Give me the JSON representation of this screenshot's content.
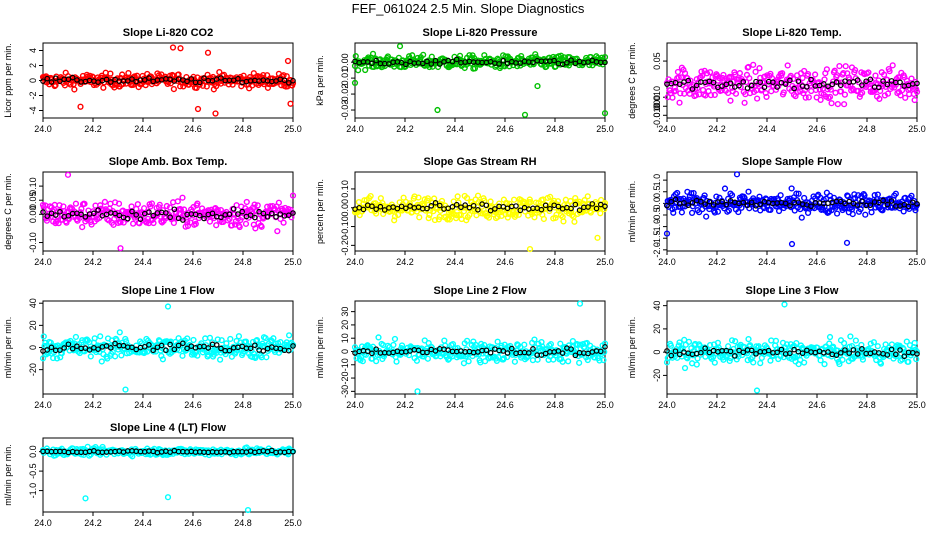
{
  "page_title": "FEF_061024  2.5 Min. Slope Diagnostics",
  "chart_data": [
    {
      "type": "scatter",
      "title": "Slope Li-820 CO2",
      "ylabel": "Licor ppm per min.",
      "color": "#ff0000",
      "xlim": [
        24.0,
        25.0
      ],
      "ylim": [
        -5,
        5
      ],
      "xticks": [
        "24.0",
        "24.2",
        "24.4",
        "24.6",
        "24.8",
        "25.0"
      ],
      "yticks": [
        {
          "v": -4,
          "t": "-4"
        },
        {
          "v": -2,
          "t": "-2"
        },
        {
          "v": 0,
          "t": "0"
        },
        {
          "v": 2,
          "t": "2"
        },
        {
          "v": 4,
          "t": "4"
        }
      ],
      "spread": 0.9,
      "outliers": [
        [
          24.52,
          4.4
        ],
        [
          24.55,
          4.3
        ],
        [
          24.66,
          3.7
        ],
        [
          24.69,
          -4.4
        ],
        [
          24.62,
          -3.8
        ],
        [
          24.99,
          -3.1
        ],
        [
          24.98,
          2.6
        ],
        [
          24.15,
          -3.5
        ]
      ]
    },
    {
      "type": "scatter",
      "title": "Slope Li-820 Pressure",
      "ylabel": "kPa per min.",
      "color": "#00c000",
      "xlim": [
        24.0,
        25.0
      ],
      "ylim": [
        -0.035,
        0.012
      ],
      "xticks": [
        "24.0",
        "24.2",
        "24.4",
        "24.6",
        "24.8",
        "25.0"
      ],
      "yticks": [
        {
          "v": -0.03,
          "t": "-0.03"
        },
        {
          "v": -0.02,
          "t": "-0.02"
        },
        {
          "v": -0.01,
          "t": "-0.01"
        },
        {
          "v": 0.0,
          "t": "0.00"
        }
      ],
      "spread": 0.004,
      "outliers": [
        [
          24.33,
          -0.03
        ],
        [
          24.68,
          -0.033
        ],
        [
          25.0,
          -0.032
        ],
        [
          24.0,
          -0.013
        ],
        [
          24.18,
          0.01
        ],
        [
          24.73,
          -0.015
        ]
      ]
    },
    {
      "type": "scatter",
      "title": "Slope Li-820 Temp.",
      "ylabel": "degrees C per min.",
      "color": "#ff00ff",
      "xlim": [
        24.0,
        25.0
      ],
      "ylim": [
        -0.013,
        0.07
      ],
      "xticks": [
        "24.0",
        "24.2",
        "24.4",
        "24.6",
        "24.8",
        "25.0"
      ],
      "yticks": [
        {
          "v": -0.01,
          "t": "-0.010"
        },
        {
          "v": 0.0,
          "t": "0.000"
        },
        {
          "v": 0.01,
          "t": "0.010"
        },
        {
          "v": 0.05,
          "t": "0.05"
        }
      ],
      "spread": 0.018,
      "center": 0.025,
      "outliers": []
    },
    {
      "type": "scatter",
      "title": "Slope Amb. Box Temp.",
      "ylabel": "degrees C per min.",
      "color": "#ff00ff",
      "xlim": [
        24.0,
        25.0
      ],
      "ylim": [
        -0.13,
        0.15
      ],
      "xticks": [
        "24.0",
        "24.2",
        "24.4",
        "24.6",
        "24.8",
        "25.0"
      ],
      "yticks": [
        {
          "v": -0.1,
          "t": "-0.10"
        },
        {
          "v": 0.0,
          "t": "0.00"
        },
        {
          "v": 0.05,
          "t": "0.05"
        },
        {
          "v": 0.1,
          "t": "0.10"
        }
      ],
      "spread": 0.045,
      "outliers": [
        [
          24.1,
          0.14
        ],
        [
          24.31,
          -0.12
        ]
      ]
    },
    {
      "type": "scatter",
      "title": "Slope Gas Stream RH",
      "ylabel": "percent per min.",
      "color": "#ffff00",
      "xlim": [
        24.0,
        25.0
      ],
      "ylim": [
        -0.23,
        0.19
      ],
      "xticks": [
        "24.0",
        "24.2",
        "24.4",
        "24.6",
        "24.8",
        "25.0"
      ],
      "yticks": [
        {
          "v": -0.2,
          "t": "-0.20"
        },
        {
          "v": -0.1,
          "t": "-0.10"
        },
        {
          "v": 0.0,
          "t": "0.00"
        },
        {
          "v": 0.1,
          "t": "0.10"
        }
      ],
      "spread": 0.06,
      "outliers": [
        [
          24.7,
          -0.22
        ],
        [
          24.97,
          -0.16
        ]
      ]
    },
    {
      "type": "scatter",
      "title": "Slope Sample Flow",
      "ylabel": "ml/min per min.",
      "color": "#0000ff",
      "xlim": [
        24.0,
        25.0
      ],
      "ylim": [
        -2.05,
        1.35
      ],
      "xticks": [
        "24.0",
        "24.2",
        "24.4",
        "24.6",
        "24.8",
        "25.0"
      ],
      "yticks": [
        {
          "v": -2.0,
          "t": "-2.0"
        },
        {
          "v": -1.5,
          "t": "-1.5"
        },
        {
          "v": -1.0,
          "t": "-1.0"
        },
        {
          "v": -0.5,
          "t": "-0.5"
        },
        {
          "v": 0.0,
          "t": "0.0"
        },
        {
          "v": 0.5,
          "t": "0.5"
        },
        {
          "v": 1.0,
          "t": "1.0"
        }
      ],
      "spread": 0.45,
      "outliers": [
        [
          24.28,
          1.25
        ],
        [
          24.5,
          -1.75
        ],
        [
          24.72,
          -1.7
        ],
        [
          24.0,
          -1.3
        ]
      ]
    },
    {
      "type": "scatter",
      "title": "Slope Line 1 Flow",
      "ylabel": "ml/min per min.",
      "color": "#00ffff",
      "xlim": [
        24.0,
        25.0
      ],
      "ylim": [
        -42,
        42
      ],
      "xticks": [
        "24.0",
        "24.2",
        "24.4",
        "24.6",
        "24.8",
        "25.0"
      ],
      "yticks": [
        {
          "v": -20,
          "t": "-20"
        },
        {
          "v": 0,
          "t": "0"
        },
        {
          "v": 20,
          "t": "20"
        },
        {
          "v": 40,
          "t": "40"
        }
      ],
      "spread": 10,
      "outliers": [
        [
          24.33,
          -38
        ],
        [
          24.5,
          37
        ]
      ]
    },
    {
      "type": "scatter",
      "title": "Slope Line 2 Flow",
      "ylabel": "ml/min per min.",
      "color": "#00ffff",
      "xlim": [
        24.0,
        25.0
      ],
      "ylim": [
        -32,
        38
      ],
      "xticks": [
        "24.0",
        "24.2",
        "24.4",
        "24.6",
        "24.8",
        "25.0"
      ],
      "yticks": [
        {
          "v": -30,
          "t": "-30"
        },
        {
          "v": -20,
          "t": "-20"
        },
        {
          "v": -10,
          "t": "-10"
        },
        {
          "v": 0,
          "t": "0"
        },
        {
          "v": 10,
          "t": "10"
        },
        {
          "v": 20,
          "t": "20"
        },
        {
          "v": 30,
          "t": "30"
        }
      ],
      "spread": 8,
      "outliers": [
        [
          24.9,
          36
        ],
        [
          24.25,
          -30
        ]
      ]
    },
    {
      "type": "scatter",
      "title": "Slope Line 3 Flow",
      "ylabel": "ml/min per min.",
      "color": "#00ffff",
      "xlim": [
        24.0,
        25.0
      ],
      "ylim": [
        -36,
        44
      ],
      "xticks": [
        "24.0",
        "24.2",
        "24.4",
        "24.6",
        "24.8",
        "25.0"
      ],
      "yticks": [
        {
          "v": -20,
          "t": "-20"
        },
        {
          "v": 0,
          "t": "0"
        },
        {
          "v": 20,
          "t": "20"
        },
        {
          "v": 40,
          "t": "40"
        }
      ],
      "spread": 9,
      "outliers": [
        [
          24.47,
          41
        ],
        [
          24.36,
          -33
        ]
      ]
    },
    {
      "type": "scatter",
      "title": "Slope Line 4 (LT) Flow",
      "ylabel": "ml/min per min.",
      "color": "#00ffff",
      "xlim": [
        24.0,
        25.0
      ],
      "ylim": [
        -1.55,
        0.35
      ],
      "xticks": [
        "24.0",
        "24.2",
        "24.4",
        "24.6",
        "24.8",
        "25.0"
      ],
      "yticks": [
        {
          "v": -1.0,
          "t": "-1.0"
        },
        {
          "v": -0.5,
          "t": "-0.5"
        },
        {
          "v": 0.0,
          "t": "0.0"
        }
      ],
      "spread": 0.09,
      "outliers": [
        [
          24.17,
          -1.2
        ],
        [
          24.5,
          -1.17
        ],
        [
          24.82,
          -1.5
        ]
      ]
    }
  ]
}
